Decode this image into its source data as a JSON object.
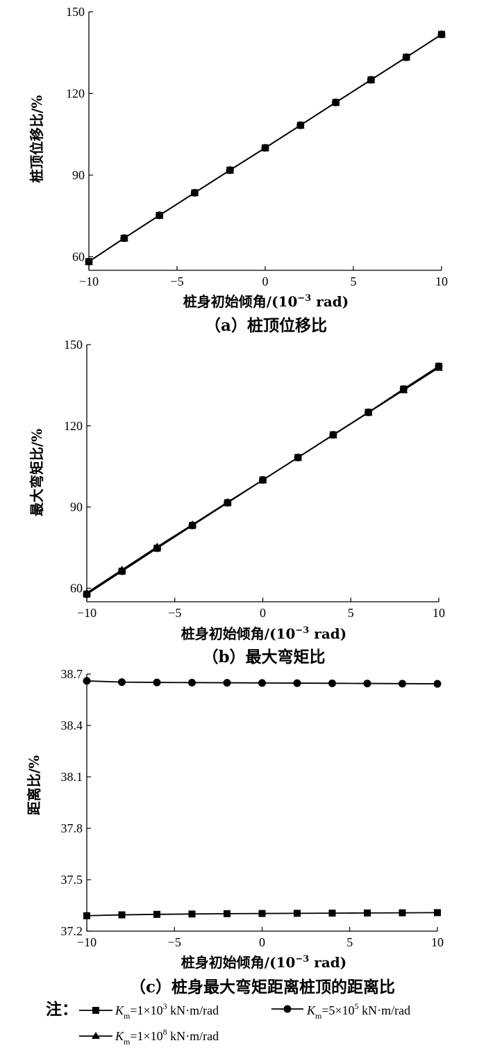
{
  "chart_data": [
    {
      "id": "a",
      "type": "line",
      "caption": "（a）桩顶位移比",
      "xlabel_prefix": "桩身初始倾角/(10",
      "xlabel_exp": "−3",
      "xlabel_suffix": " rad)",
      "ylabel": "桩顶位移比/%",
      "xlim": [
        -10,
        10
      ],
      "ylim": [
        55,
        150
      ],
      "xticks": [
        -10,
        -5,
        0,
        5,
        10
      ],
      "xtick_labels": [
        "−10",
        "−5",
        "0",
        "5",
        "10"
      ],
      "yticks": [
        60,
        90,
        120,
        150
      ],
      "ytick_labels": [
        "60",
        "90",
        "120",
        "150"
      ],
      "x": [
        -10,
        -8,
        -6,
        -4,
        -2,
        0,
        2,
        4,
        6,
        8,
        10
      ],
      "series": [
        {
          "name": "K_m=1×10^3 kN·m/rad",
          "marker": "square",
          "values": [
            58.2,
            66.8,
            75.2,
            83.5,
            91.8,
            100.0,
            108.3,
            116.7,
            125.0,
            133.3,
            141.7
          ]
        },
        {
          "name": "K_m=5×10^5 kN·m/rad",
          "marker": "circle",
          "values": [
            58.2,
            66.8,
            75.2,
            83.5,
            91.8,
            100.0,
            108.3,
            116.7,
            125.0,
            133.3,
            141.7
          ]
        },
        {
          "name": "K_m=1×10^8 kN·m/rad",
          "marker": "triangle",
          "values": [
            58.2,
            66.8,
            75.2,
            83.5,
            91.8,
            100.0,
            108.3,
            116.7,
            125.0,
            133.3,
            141.7
          ]
        }
      ]
    },
    {
      "id": "b",
      "type": "line",
      "caption": "（b）最大弯矩比",
      "xlabel_prefix": "桩身初始倾角/(10",
      "xlabel_exp": "−3",
      "xlabel_suffix": " rad)",
      "ylabel": "最大弯矩比/%",
      "xlim": [
        -10,
        10
      ],
      "ylim": [
        55,
        150
      ],
      "xticks": [
        -10,
        -5,
        0,
        5,
        10
      ],
      "xtick_labels": [
        "−10",
        "−5",
        "0",
        "5",
        "10"
      ],
      "yticks": [
        60,
        90,
        120,
        150
      ],
      "ytick_labels": [
        "60",
        "90",
        "120",
        "150"
      ],
      "x": [
        -10,
        -8,
        -6,
        -4,
        -2,
        0,
        2,
        4,
        6,
        8,
        10
      ],
      "series": [
        {
          "name": "K_m=1×10^3 kN·m/rad",
          "marker": "square",
          "values": [
            57.8,
            66.3,
            74.8,
            83.2,
            91.6,
            100.0,
            108.3,
            116.7,
            125.0,
            133.6,
            142.0
          ]
        },
        {
          "name": "K_m=5×10^5 kN·m/rad",
          "marker": "circle",
          "values": [
            57.8,
            66.3,
            74.8,
            83.2,
            91.6,
            100.0,
            108.3,
            116.7,
            125.0,
            133.6,
            142.0
          ]
        },
        {
          "name": "K_m=1×10^8 kN·m/rad",
          "marker": "triangle",
          "values": [
            58.3,
            66.8,
            75.3,
            83.5,
            91.8,
            100.0,
            108.3,
            116.6,
            124.9,
            133.2,
            141.5
          ]
        }
      ]
    },
    {
      "id": "c",
      "type": "line",
      "caption": "（c）桩身最大弯矩距离桩顶的距离比",
      "xlabel_prefix": "桩身初始倾角/(10",
      "xlabel_exp": "−3",
      "xlabel_suffix": " rad)",
      "ylabel": "距离比/%",
      "xlim": [
        -10,
        10
      ],
      "ylim": [
        37.2,
        38.7
      ],
      "xticks": [
        -10,
        -5,
        0,
        5,
        10
      ],
      "xtick_labels": [
        "−10",
        "−5",
        "0",
        "5",
        "10"
      ],
      "yticks": [
        37.2,
        37.5,
        37.8,
        38.1,
        38.4,
        38.7
      ],
      "ytick_labels": [
        "37.2",
        "37.5",
        "37.8",
        "38.1",
        "38.4",
        "38.7"
      ],
      "x": [
        -10,
        -8,
        -6,
        -4,
        -2,
        0,
        2,
        4,
        6,
        8,
        10
      ],
      "series": [
        {
          "name": "K_m=1×10^3 kN·m/rad",
          "marker": "square",
          "values": [
            37.29,
            37.295,
            37.298,
            37.3,
            37.302,
            37.303,
            37.304,
            37.305,
            37.306,
            37.307,
            37.308
          ]
        },
        {
          "name": "K_m=5×10^5 kN·m/rad",
          "marker": "circle",
          "values": [
            38.66,
            38.653,
            38.651,
            38.65,
            38.649,
            38.648,
            38.647,
            38.646,
            38.645,
            38.644,
            38.643
          ]
        }
      ]
    }
  ],
  "legend": {
    "note_label": "注：",
    "items": [
      {
        "marker": "square",
        "k": "K",
        "sub": "m",
        "eq": "=1×10",
        "exp": "3",
        "unit": " kN·m/rad"
      },
      {
        "marker": "circle",
        "k": "K",
        "sub": "m",
        "eq": "=5×10",
        "exp": "5",
        "unit": " kN·m/rad"
      },
      {
        "marker": "triangle",
        "k": "K",
        "sub": "m",
        "eq": "=1×10",
        "exp": "8",
        "unit": " kN·m/rad"
      }
    ]
  }
}
